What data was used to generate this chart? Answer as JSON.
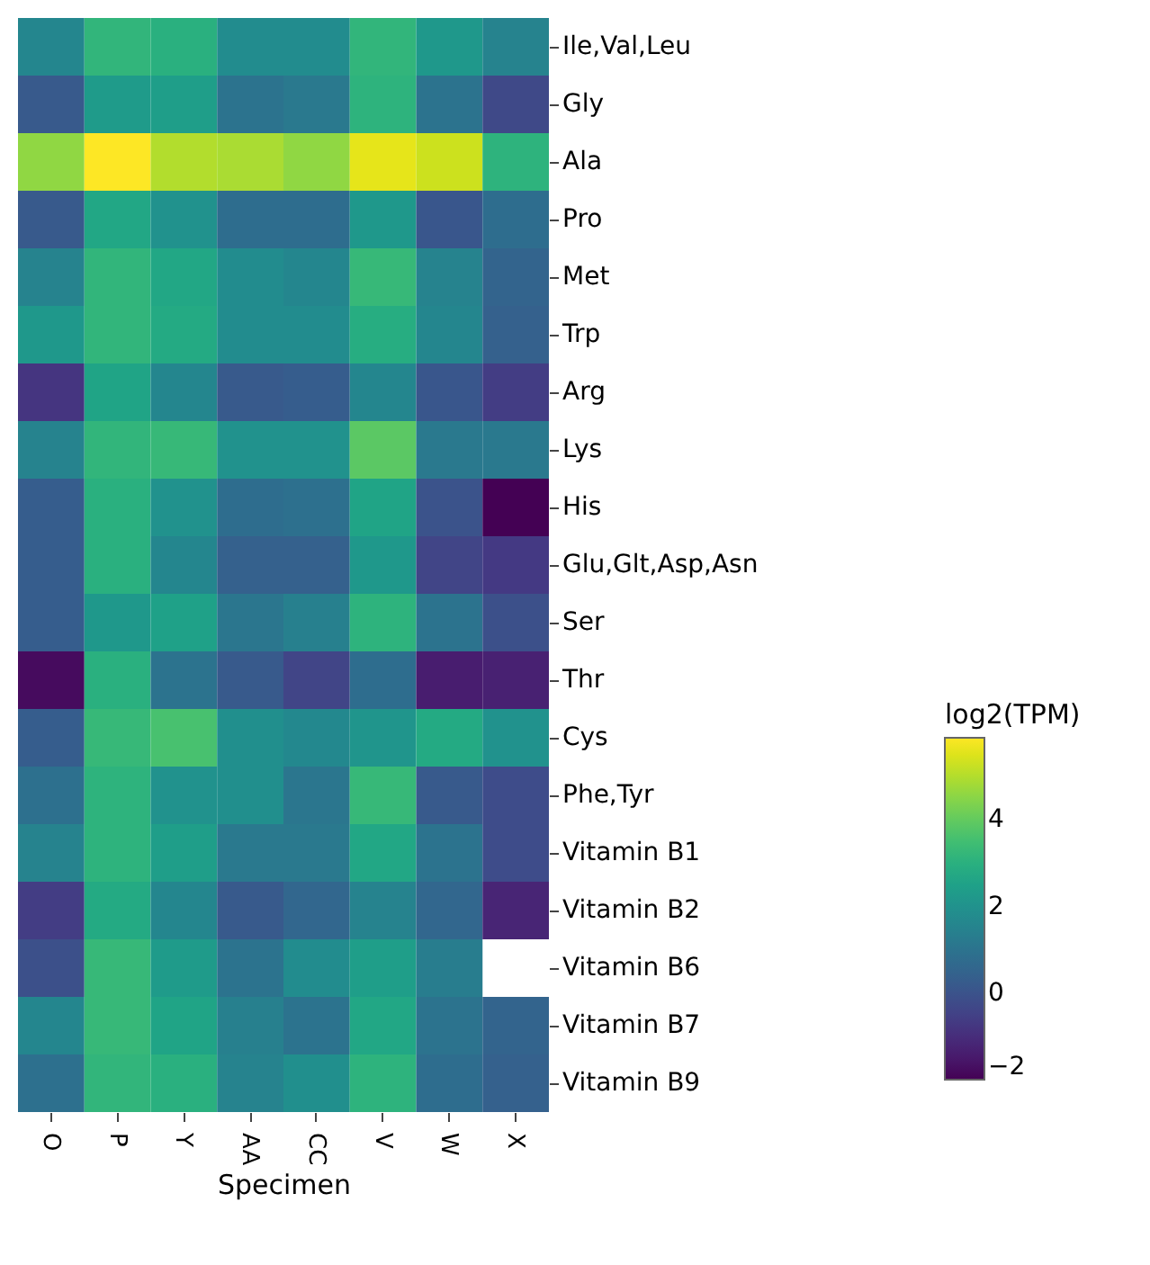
{
  "chart_data": {
    "type": "heatmap",
    "xlabel": "Specimen",
    "clabel": "log2(TPM)",
    "categories": [
      "O",
      "P",
      "Y",
      "AA",
      "CC",
      "V",
      "W",
      "X"
    ],
    "y_categories": [
      "Ile,Val,Leu",
      "Gly",
      "Ala",
      "Pro",
      "Met",
      "Trp",
      "Arg",
      "Lys",
      "His",
      "Glu,Glt,Asp,Asn",
      "Ser",
      "Thr",
      "Cys",
      "Phe,Tyr",
      "Vitamin B1",
      "Vitamin B2",
      "Vitamin B6",
      "Vitamin B7",
      "Vitamin B9"
    ],
    "cells": [
      [
        1.6,
        3.2,
        3.0,
        1.8,
        1.8,
        3.2,
        2.2,
        1.5
      ],
      [
        0.2,
        2.3,
        2.4,
        1.0,
        1.2,
        3.1,
        1.0,
        -0.3
      ],
      [
        4.6,
        5.9,
        5.0,
        4.9,
        4.6,
        5.6,
        5.3,
        3.1
      ],
      [
        0.2,
        2.7,
        2.0,
        0.8,
        0.8,
        2.2,
        0.1,
        0.8
      ],
      [
        1.5,
        3.2,
        2.7,
        1.8,
        1.6,
        3.3,
        1.5,
        0.5
      ],
      [
        2.2,
        3.2,
        2.8,
        1.8,
        1.8,
        2.9,
        1.6,
        0.4
      ],
      [
        -0.8,
        2.6,
        1.6,
        0.2,
        0.3,
        1.6,
        0.1,
        -0.6
      ],
      [
        1.5,
        3.2,
        3.3,
        2.0,
        2.0,
        3.9,
        1.2,
        1.2
      ],
      [
        0.3,
        3.0,
        2.0,
        0.8,
        0.9,
        2.6,
        0.0,
        -2.0
      ],
      [
        0.3,
        3.0,
        1.6,
        0.4,
        0.4,
        2.2,
        -0.4,
        -0.7
      ],
      [
        0.3,
        2.2,
        2.5,
        1.1,
        1.4,
        3.1,
        1.0,
        -0.1
      ],
      [
        -1.8,
        3.0,
        1.0,
        0.2,
        -0.4,
        0.8,
        -1.4,
        -1.3
      ],
      [
        0.3,
        3.3,
        3.6,
        1.9,
        1.7,
        2.1,
        2.8,
        2.0
      ],
      [
        0.9,
        3.1,
        2.0,
        1.9,
        1.1,
        3.3,
        0.2,
        -0.2
      ],
      [
        1.5,
        3.1,
        2.4,
        1.2,
        1.2,
        2.7,
        1.0,
        -0.2
      ],
      [
        -0.6,
        2.8,
        1.6,
        0.2,
        0.6,
        1.5,
        0.6,
        -1.2
      ],
      [
        -0.1,
        3.3,
        2.3,
        1.0,
        1.8,
        2.4,
        1.3,
        null
      ],
      [
        1.6,
        3.3,
        2.6,
        1.4,
        1.0,
        2.7,
        1.0,
        0.5
      ],
      [
        0.9,
        3.2,
        3.0,
        1.5,
        1.9,
        3.1,
        0.8,
        0.4
      ]
    ],
    "clim": [
      -2,
      5.9
    ],
    "cticks": [
      -2,
      0,
      2,
      4
    ]
  }
}
